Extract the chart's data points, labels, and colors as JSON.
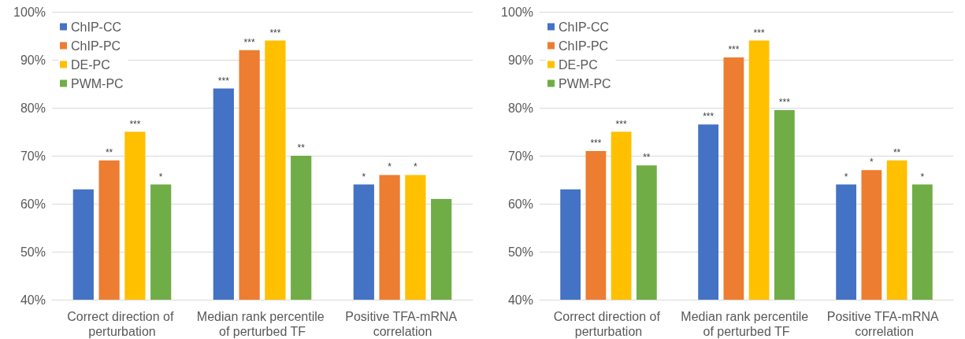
{
  "chart_data": [
    {
      "type": "bar",
      "categories": [
        "Correct direction of perturbation",
        "Median rank percentile of perturbed TF",
        "Positive TFA-mRNA correlation"
      ],
      "series": [
        {
          "name": "ChIP-CC",
          "color": "#4472c4",
          "values": [
            63,
            84,
            64
          ],
          "value_labels": [
            null,
            "***",
            "*"
          ]
        },
        {
          "name": "ChIP-PC",
          "color": "#ed7d31",
          "values": [
            69,
            92,
            66
          ],
          "value_labels": [
            "**",
            "***",
            "*"
          ]
        },
        {
          "name": "DE-PC",
          "color": "#ffc000",
          "values": [
            75,
            94,
            66
          ],
          "value_labels": [
            "***",
            "***",
            "*"
          ]
        },
        {
          "name": "PWM-PC",
          "color": "#70ad47",
          "values": [
            64,
            70,
            61
          ],
          "value_labels": [
            "*",
            "**",
            null
          ]
        }
      ],
      "ylim": [
        40,
        100
      ],
      "yticks": [
        {
          "value": 40,
          "label": "40%"
        },
        {
          "value": 50,
          "label": "50%"
        },
        {
          "value": 60,
          "label": "60%"
        },
        {
          "value": 70,
          "label": "70%"
        },
        {
          "value": 80,
          "label": "80%"
        },
        {
          "value": 90,
          "label": "90%"
        },
        {
          "value": 100,
          "label": "100%"
        }
      ],
      "grid": "y",
      "legend": "top left"
    },
    {
      "type": "bar",
      "categories": [
        "Correct direction of perturbation",
        "Median rank percentile of perturbed TF",
        "Positive TFA-mRNA correlation"
      ],
      "series": [
        {
          "name": "ChIP-CC",
          "color": "#4472c4",
          "values": [
            63,
            76.5,
            64
          ],
          "value_labels": [
            null,
            "***",
            "*"
          ]
        },
        {
          "name": "ChIP-PC",
          "color": "#ed7d31",
          "values": [
            71,
            90.5,
            67
          ],
          "value_labels": [
            "***",
            "***",
            "*"
          ]
        },
        {
          "name": "DE-PC",
          "color": "#ffc000",
          "values": [
            75,
            94,
            69
          ],
          "value_labels": [
            "***",
            "***",
            "**"
          ]
        },
        {
          "name": "PWM-PC",
          "color": "#70ad47",
          "values": [
            68,
            79.5,
            64
          ],
          "value_labels": [
            "**",
            "***",
            "*"
          ]
        }
      ],
      "ylim": [
        40,
        100
      ],
      "yticks": [
        {
          "value": 40,
          "label": "40%"
        },
        {
          "value": 50,
          "label": "50%"
        },
        {
          "value": 60,
          "label": "60%"
        },
        {
          "value": 70,
          "label": "70%"
        },
        {
          "value": 80,
          "label": "80%"
        },
        {
          "value": 90,
          "label": "90%"
        },
        {
          "value": 100,
          "label": "100%"
        }
      ],
      "grid": "y",
      "legend": "top left"
    }
  ]
}
